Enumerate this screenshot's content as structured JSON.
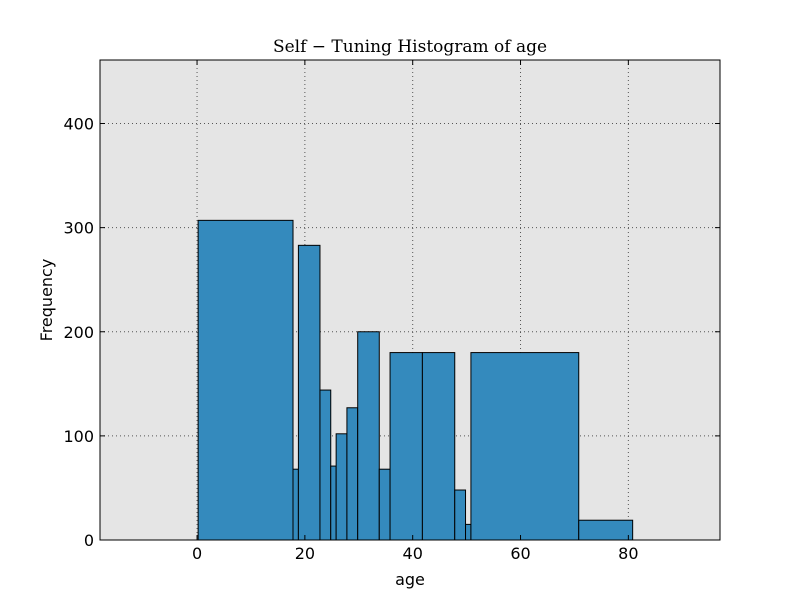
{
  "chart_data": {
    "type": "bar",
    "title": "Self − Tuning Histogram of age",
    "xlabel": "age",
    "ylabel": "Frequency",
    "xlim": [
      -18,
      97
    ],
    "ylim": [
      0,
      461
    ],
    "xticks": [
      0,
      20,
      40,
      60,
      80
    ],
    "yticks": [
      0,
      100,
      200,
      300,
      400
    ],
    "grid": true,
    "bins": [
      {
        "start": 0.2,
        "end": 17.8,
        "value": 307
      },
      {
        "start": 17.8,
        "end": 18.8,
        "value": 68
      },
      {
        "start": 18.8,
        "end": 22.8,
        "value": 283
      },
      {
        "start": 22.8,
        "end": 24.8,
        "value": 144
      },
      {
        "start": 24.8,
        "end": 25.8,
        "value": 71
      },
      {
        "start": 25.8,
        "end": 27.8,
        "value": 102
      },
      {
        "start": 27.8,
        "end": 29.8,
        "value": 127
      },
      {
        "start": 29.8,
        "end": 33.8,
        "value": 200
      },
      {
        "start": 33.8,
        "end": 35.8,
        "value": 68
      },
      {
        "start": 35.8,
        "end": 41.8,
        "value": 180
      },
      {
        "start": 41.8,
        "end": 47.8,
        "value": 180
      },
      {
        "start": 47.8,
        "end": 49.8,
        "value": 48
      },
      {
        "start": 49.8,
        "end": 50.8,
        "value": 15
      },
      {
        "start": 50.8,
        "end": 70.8,
        "value": 180
      },
      {
        "start": 70.8,
        "end": 80.8,
        "value": 19
      }
    ]
  },
  "colors": {
    "bar_fill": "#348abd",
    "bar_edge": "#000000",
    "plot_bg": "#e5e5e5",
    "grid": "#555555"
  }
}
